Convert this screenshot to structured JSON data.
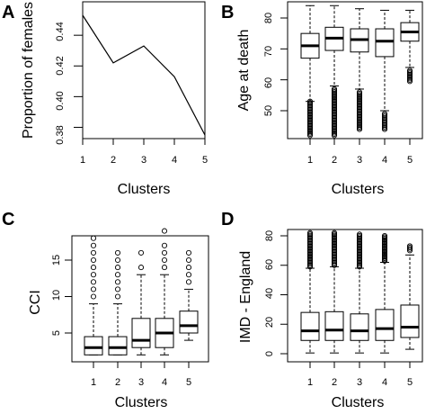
{
  "figure": {
    "panels": [
      {
        "letter": "A",
        "ylabel": "Proportion of females",
        "xlabel": "Clusters",
        "yticks": [
          "0.38",
          "0.40",
          "0.42",
          "0.44"
        ],
        "xticks": [
          "1",
          "2",
          "3",
          "4",
          "5"
        ]
      },
      {
        "letter": "B",
        "ylabel": "Age at death",
        "xlabel": "Clusters",
        "yticks": [
          "50",
          "60",
          "70",
          "80"
        ],
        "xticks": [
          "1",
          "2",
          "3",
          "4",
          "5"
        ]
      },
      {
        "letter": "C",
        "ylabel": "CCI",
        "xlabel": "Clusters",
        "yticks": [
          "5",
          "10",
          "15"
        ],
        "xticks": [
          "1",
          "2",
          "3",
          "4",
          "5"
        ]
      },
      {
        "letter": "D",
        "ylabel": "IMD - England",
        "xlabel": "Clusters",
        "yticks": [
          "0",
          "20",
          "40",
          "60",
          "80"
        ],
        "xticks": [
          "1",
          "2",
          "3",
          "4",
          "5"
        ]
      }
    ]
  },
  "chart_data": [
    {
      "type": "line",
      "title": "",
      "xlabel": "Clusters",
      "ylabel": "Proportion of females",
      "x": [
        1,
        2,
        3,
        4,
        5
      ],
      "values": [
        0.453,
        0.422,
        0.433,
        0.413,
        0.375
      ],
      "xlim": [
        1,
        5
      ],
      "ylim": [
        0.375,
        0.453
      ],
      "yticks": [
        0.38,
        0.4,
        0.42,
        0.44
      ],
      "grid": false
    },
    {
      "type": "boxplot",
      "title": "",
      "xlabel": "Clusters",
      "ylabel": "Age at death",
      "categories": [
        "1",
        "2",
        "3",
        "4",
        "5"
      ],
      "ylim": [
        42,
        85
      ],
      "yticks": [
        50,
        60,
        70,
        80
      ],
      "boxes": [
        {
          "whisker_low": 53,
          "q1": 67,
          "median": 71,
          "q3": 75,
          "whisker_high": 84,
          "outliers_low": [
            42,
            53
          ],
          "outliers_high": []
        },
        {
          "whisker_low": 58,
          "q1": 69.5,
          "median": 73.5,
          "q3": 77,
          "whisker_high": 84,
          "outliers_low": [
            42,
            57
          ],
          "outliers_high": []
        },
        {
          "whisker_low": 57,
          "q1": 69,
          "median": 73,
          "q3": 76.5,
          "whisker_high": 83,
          "outliers_low": [
            44,
            56
          ],
          "outliers_high": []
        },
        {
          "whisker_low": 50,
          "q1": 67.5,
          "median": 72.5,
          "q3": 76.5,
          "whisker_high": 82.5,
          "outliers_low": [
            44,
            49
          ],
          "outliers_high": []
        },
        {
          "whisker_low": 64,
          "q1": 72.5,
          "median": 75.5,
          "q3": 78.5,
          "whisker_high": 82.5,
          "outliers_low": [
            59.5,
            63
          ],
          "outliers_high": []
        }
      ]
    },
    {
      "type": "boxplot",
      "title": "",
      "xlabel": "Clusters",
      "ylabel": "CCI",
      "categories": [
        "1",
        "2",
        "3",
        "4",
        "5"
      ],
      "ylim": [
        1.5,
        19.5
      ],
      "yticks": [
        5,
        10,
        15
      ],
      "boxes": [
        {
          "whisker_low": 2,
          "q1": 2,
          "median": 3,
          "q3": 4.5,
          "whisker_high": 9,
          "outliers_low": [],
          "outliers_high": [
            10,
            11,
            12,
            13,
            14,
            15,
            16,
            17,
            18
          ]
        },
        {
          "whisker_low": 2,
          "q1": 2,
          "median": 3,
          "q3": 4.5,
          "whisker_high": 9,
          "outliers_low": [],
          "outliers_high": [
            10,
            11,
            12,
            13,
            14,
            15,
            16
          ]
        },
        {
          "whisker_low": 2,
          "q1": 3,
          "median": 4,
          "q3": 7,
          "whisker_high": 13,
          "outliers_low": [],
          "outliers_high": [
            14,
            16
          ]
        },
        {
          "whisker_low": 2,
          "q1": 3,
          "median": 5,
          "q3": 7,
          "whisker_high": 13,
          "outliers_low": [],
          "outliers_high": [
            14,
            15,
            16,
            17,
            19
          ]
        },
        {
          "whisker_low": 4,
          "q1": 5,
          "median": 6,
          "q3": 8,
          "whisker_high": 11,
          "outliers_low": [],
          "outliers_high": [
            12,
            13,
            14,
            15,
            16
          ]
        }
      ]
    },
    {
      "type": "boxplot",
      "title": "",
      "xlabel": "Clusters",
      "ylabel": "IMD - England",
      "categories": [
        "1",
        "2",
        "3",
        "4",
        "5"
      ],
      "ylim": [
        0,
        83
      ],
      "yticks": [
        0,
        20,
        40,
        60,
        80
      ],
      "boxes": [
        {
          "whisker_low": 0.5,
          "q1": 9,
          "median": 15.5,
          "q3": 28,
          "whisker_high": 58,
          "outliers_low": [],
          "outliers_high": [
            59,
            82
          ]
        },
        {
          "whisker_low": 0.5,
          "q1": 9,
          "median": 16,
          "q3": 28.5,
          "whisker_high": 59,
          "outliers_low": [],
          "outliers_high": [
            60,
            82
          ]
        },
        {
          "whisker_low": 0.5,
          "q1": 9,
          "median": 15.5,
          "q3": 27,
          "whisker_high": 58,
          "outliers_low": [],
          "outliers_high": [
            59,
            81
          ]
        },
        {
          "whisker_low": 0.5,
          "q1": 9,
          "median": 17,
          "q3": 30,
          "whisker_high": 62,
          "outliers_low": [],
          "outliers_high": [
            63,
            80
          ]
        },
        {
          "whisker_low": 3,
          "q1": 11,
          "median": 18,
          "q3": 33,
          "whisker_high": 67,
          "outliers_low": [],
          "outliers_high": [
            70,
            73
          ]
        }
      ]
    }
  ]
}
